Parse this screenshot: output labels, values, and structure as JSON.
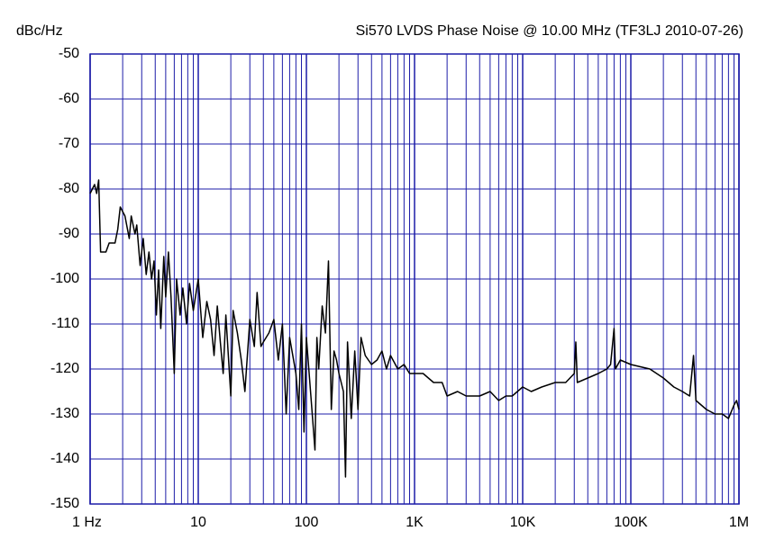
{
  "chart_data": {
    "type": "line",
    "title": "Si570 LVDS Phase Noise @ 10.00 MHz (TF3LJ 2010-07-26)",
    "y_label": "dBc/Hz",
    "x_scale": "log",
    "grid": true,
    "grid_color": "#1c1ca8",
    "xlim": [
      1,
      1000000
    ],
    "ylim": [
      -150,
      -50
    ],
    "xticks": [
      {
        "value": 1,
        "label": "1 Hz"
      },
      10,
      100,
      {
        "value": 1000,
        "label": "1K"
      },
      {
        "value": 10000,
        "label": "10K"
      },
      {
        "value": 100000,
        "label": "100K"
      },
      {
        "value": 1000000,
        "label": "1M"
      }
    ],
    "x_minor_ticks": [
      2,
      3,
      4,
      5,
      6,
      7,
      8,
      9,
      20,
      30,
      40,
      50,
      60,
      70,
      80,
      90,
      200,
      300,
      400,
      500,
      600,
      700,
      800,
      900,
      2000,
      3000,
      4000,
      5000,
      6000,
      7000,
      8000,
      9000,
      20000,
      30000,
      40000,
      50000,
      60000,
      70000,
      80000,
      90000,
      200000,
      300000,
      400000,
      500000,
      600000,
      700000,
      800000,
      900000
    ],
    "yticks": [
      -50,
      -60,
      -70,
      -80,
      -90,
      -100,
      -110,
      -120,
      -130,
      -140,
      -150
    ],
    "series": [
      {
        "color": "#000000",
        "x": [
          1,
          1.1,
          1.15,
          1.2,
          1.25,
          1.4,
          1.5,
          1.7,
          1.8,
          1.9,
          2.1,
          2.3,
          2.4,
          2.6,
          2.7,
          2.9,
          3.1,
          3.3,
          3.5,
          3.7,
          3.9,
          4.1,
          4.3,
          4.5,
          4.8,
          5,
          5.3,
          5.6,
          6,
          6.3,
          6.8,
          7.2,
          7.8,
          8.3,
          9,
          10,
          11,
          12,
          13,
          14,
          15,
          16,
          17,
          18,
          20,
          21,
          23,
          25,
          27,
          30,
          33,
          35,
          38,
          40,
          45,
          50,
          55,
          60,
          65,
          70,
          80,
          85,
          90,
          95,
          100,
          110,
          120,
          125,
          130,
          140,
          150,
          160,
          170,
          180,
          190,
          200,
          220,
          230,
          240,
          260,
          280,
          300,
          320,
          350,
          400,
          450,
          500,
          550,
          600,
          700,
          800,
          900,
          1000,
          1200,
          1500,
          1800,
          2000,
          2500,
          3000,
          4000,
          5000,
          6000,
          7000,
          8000,
          10000,
          12000,
          15000,
          20000,
          25000,
          30000,
          31000,
          32000,
          40000,
          50000,
          60000,
          65000,
          70000,
          72000,
          80000,
          100000,
          150000,
          200000,
          250000,
          300000,
          350000,
          380000,
          400000,
          500000,
          600000,
          700000,
          800000,
          900000,
          950000,
          1000000
        ],
        "values": [
          -81,
          -79,
          -81,
          -78,
          -94,
          -94,
          -92,
          -92,
          -89,
          -84,
          -86,
          -91,
          -86,
          -90,
          -88,
          -97,
          -91,
          -99,
          -94,
          -100,
          -96,
          -108,
          -98,
          -111,
          -95,
          -104,
          -94,
          -104,
          -121,
          -100,
          -108,
          -102,
          -110,
          -101,
          -107,
          -100,
          -113,
          -105,
          -109,
          -117,
          -106,
          -114,
          -121,
          -108,
          -126,
          -107,
          -112,
          -118,
          -125,
          -109,
          -115,
          -103,
          -115,
          -114,
          -112,
          -109,
          -118,
          -110,
          -130,
          -113,
          -121,
          -129,
          -110,
          -134,
          -113,
          -126,
          -138,
          -113,
          -120,
          -106,
          -112,
          -96,
          -129,
          -116,
          -118,
          -121,
          -125,
          -144,
          -114,
          -131,
          -116,
          -129,
          -113,
          -117,
          -119,
          -118,
          -116,
          -120,
          -117,
          -120,
          -119,
          -121,
          -121,
          -121,
          -123,
          -123,
          -126,
          -125,
          -126,
          -126,
          -125,
          -127,
          -126,
          -126,
          -124,
          -125,
          -124,
          -123,
          -123,
          -121,
          -114,
          -123,
          -122,
          -121,
          -120,
          -119,
          -111,
          -120,
          -118,
          -119,
          -120,
          -122,
          -124,
          -125,
          -126,
          -117,
          -127,
          -129,
          -130,
          -130,
          -131,
          -128,
          -127,
          -129
        ]
      }
    ]
  }
}
